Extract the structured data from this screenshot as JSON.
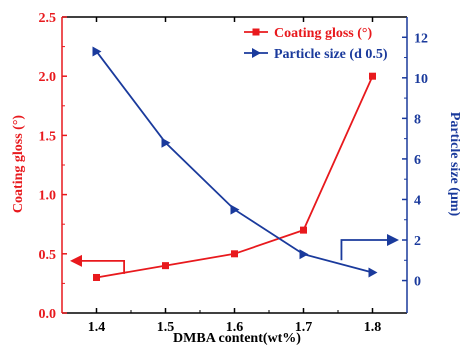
{
  "chart_data": {
    "type": "line",
    "x": [
      1.4,
      1.5,
      1.6,
      1.7,
      1.8
    ],
    "xlabel": "DMBA content(wt%)",
    "xlim": [
      1.35,
      1.85
    ],
    "xticks": [
      1.4,
      1.5,
      1.6,
      1.7,
      1.8
    ],
    "left_axis": {
      "label": "Coating gloss (°)",
      "ylim": [
        0.0,
        2.5
      ],
      "ticks": [
        "0.0",
        "0.5",
        "1.0",
        "1.5",
        "2.0",
        "2.5"
      ],
      "color": "#e8191d"
    },
    "right_axis": {
      "label": "Particle size (μm)",
      "ylim": [
        -1.6,
        13
      ],
      "ticks": [
        "0",
        "2",
        "4",
        "6",
        "8",
        "10",
        "12"
      ],
      "color": "#1a3a9c"
    },
    "series": [
      {
        "name": "Coating gloss (°)",
        "axis": "left",
        "marker": "square",
        "color": "#e8191d",
        "values": [
          0.3,
          0.4,
          0.5,
          0.7,
          2.0
        ]
      },
      {
        "name": "Particle size (d 0.5)",
        "axis": "right",
        "marker": "triangle-right",
        "color": "#1a3a9c",
        "values": [
          11.3,
          6.8,
          3.5,
          1.3,
          0.4
        ]
      }
    ],
    "legend_position": "top-right",
    "grid": false
  }
}
